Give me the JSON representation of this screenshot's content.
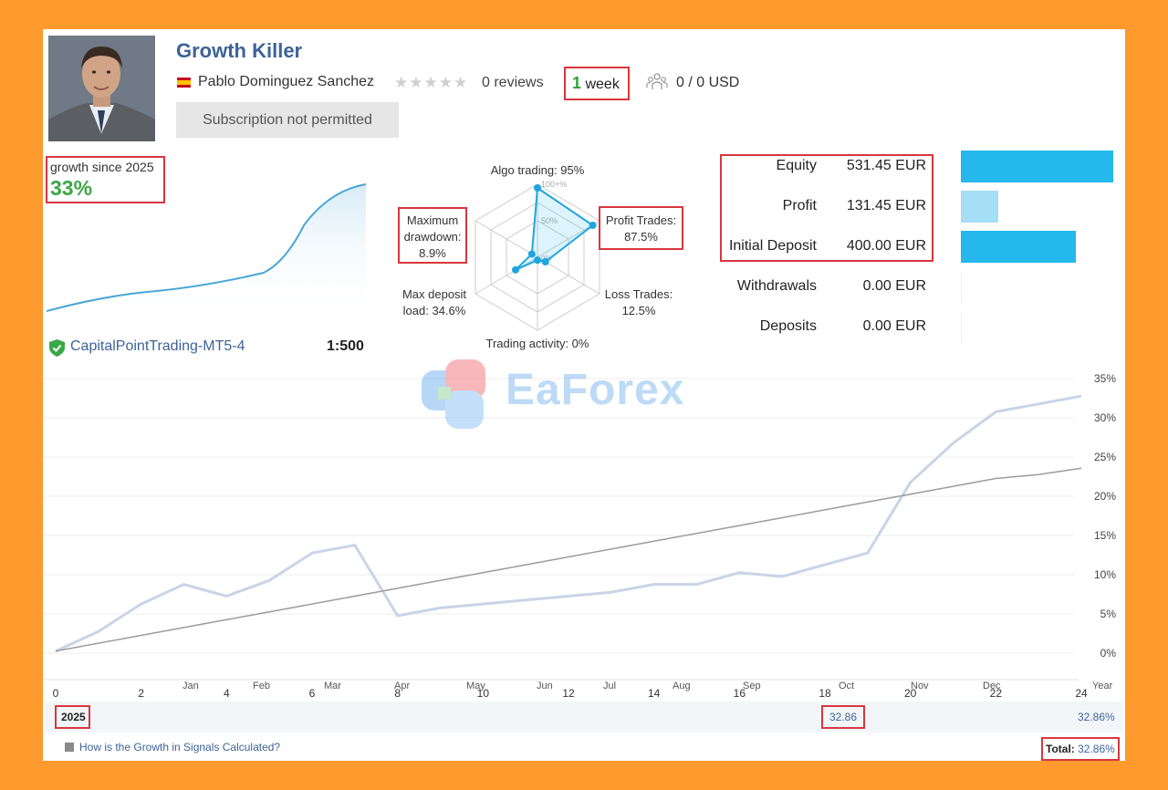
{
  "header": {
    "title": "Growth Killer",
    "author": "Pablo Dominguez Sanchez",
    "stars": "★★★★★",
    "reviews": "0 reviews",
    "week_num": "1",
    "week_unit": " week",
    "subscribers": "0 / 0 USD",
    "subscribe_button": "Subscription not permitted"
  },
  "growth": {
    "label": "growth since 2025",
    "value": "33%"
  },
  "radar": {
    "labels": {
      "algo": "Algo trading: 95%",
      "profit_trades_1": "Profit Trades:",
      "profit_trades_2": "87.5%",
      "loss_1": "Loss Trades:",
      "loss_2": "12.5%",
      "activity": "Trading activity: 0%",
      "deposit_load_1": "Max deposit",
      "deposit_load_2": "load: 34.6%",
      "drawdown_1": "Maximum",
      "drawdown_2": "drawdown:",
      "drawdown_3": "8.9%"
    },
    "scale_100": "100+%",
    "scale_50": "50%",
    "scale_0": "0%",
    "values": {
      "algo": 95,
      "profit_trades": 87.5,
      "loss_trades": 12.5,
      "activity": 0,
      "deposit_load": 34.6,
      "drawdown": 8.9
    }
  },
  "stats": [
    {
      "label": "Equity",
      "value": "531.45 EUR",
      "amount": 531.45
    },
    {
      "label": "Profit",
      "value": "131.45 EUR",
      "amount": 131.45
    },
    {
      "label": "Initial Deposit",
      "value": "400.00 EUR",
      "amount": 400.0
    },
    {
      "label": "Withdrawals",
      "value": "0.00 EUR",
      "amount": 0
    },
    {
      "label": "Deposits",
      "value": "0.00 EUR",
      "amount": 0
    }
  ],
  "account": {
    "broker": "CapitalPointTrading-MT5-4",
    "leverage": "1:500"
  },
  "watermark": "EaForex",
  "chart_data": {
    "type": "line",
    "x": [
      0,
      1,
      2,
      3,
      4,
      5,
      6,
      7,
      8,
      9,
      10,
      11,
      12,
      13,
      14,
      15,
      16,
      17,
      18,
      19,
      20,
      21,
      22,
      23,
      24
    ],
    "series": [
      {
        "values": [
          0.5,
          3,
          6.5,
          9,
          7.5,
          9.5,
          13,
          14,
          5,
          6,
          6.5,
          7,
          7.5,
          8,
          9,
          9,
          10.5,
          10,
          11.5,
          13,
          22,
          27,
          31,
          32,
          33
        ]
      },
      {
        "values": [
          0.5,
          1.5,
          2.5,
          3.5,
          4.5,
          5.5,
          6.5,
          7.5,
          8.5,
          9.5,
          10.5,
          11.5,
          12.5,
          13.5,
          14.5,
          15.5,
          16.5,
          17.5,
          18.5,
          19.5,
          20.5,
          21.5,
          22.5,
          23,
          23.8
        ]
      }
    ],
    "xticks": [
      "0",
      "2",
      "4",
      "6",
      "8",
      "10",
      "12",
      "14",
      "16",
      "18",
      "20",
      "22",
      "24"
    ],
    "months": [
      "Jan",
      "Feb",
      "Mar",
      "Apr",
      "May",
      "Jun",
      "Jul",
      "Aug",
      "Sep",
      "Oct",
      "Nov",
      "Dec",
      "Year"
    ],
    "yticks": [
      "35%",
      "30%",
      "25%",
      "20%",
      "15%",
      "10%",
      "5%",
      "0%"
    ],
    "ylim": [
      0,
      35
    ],
    "grid": true
  },
  "yearly": {
    "year": "2025",
    "oct_value": "32.86",
    "year_value": "32.86%",
    "total_label": "Total:",
    "total_value": "32.86%"
  },
  "footer": {
    "link": "How is the Growth in Signals Calculated?"
  },
  "colors": {
    "accent_blue": "#24b8ec",
    "title_blue": "#3d6397",
    "growth_green": "#3aa845",
    "highlight_red": "#d9363e"
  }
}
